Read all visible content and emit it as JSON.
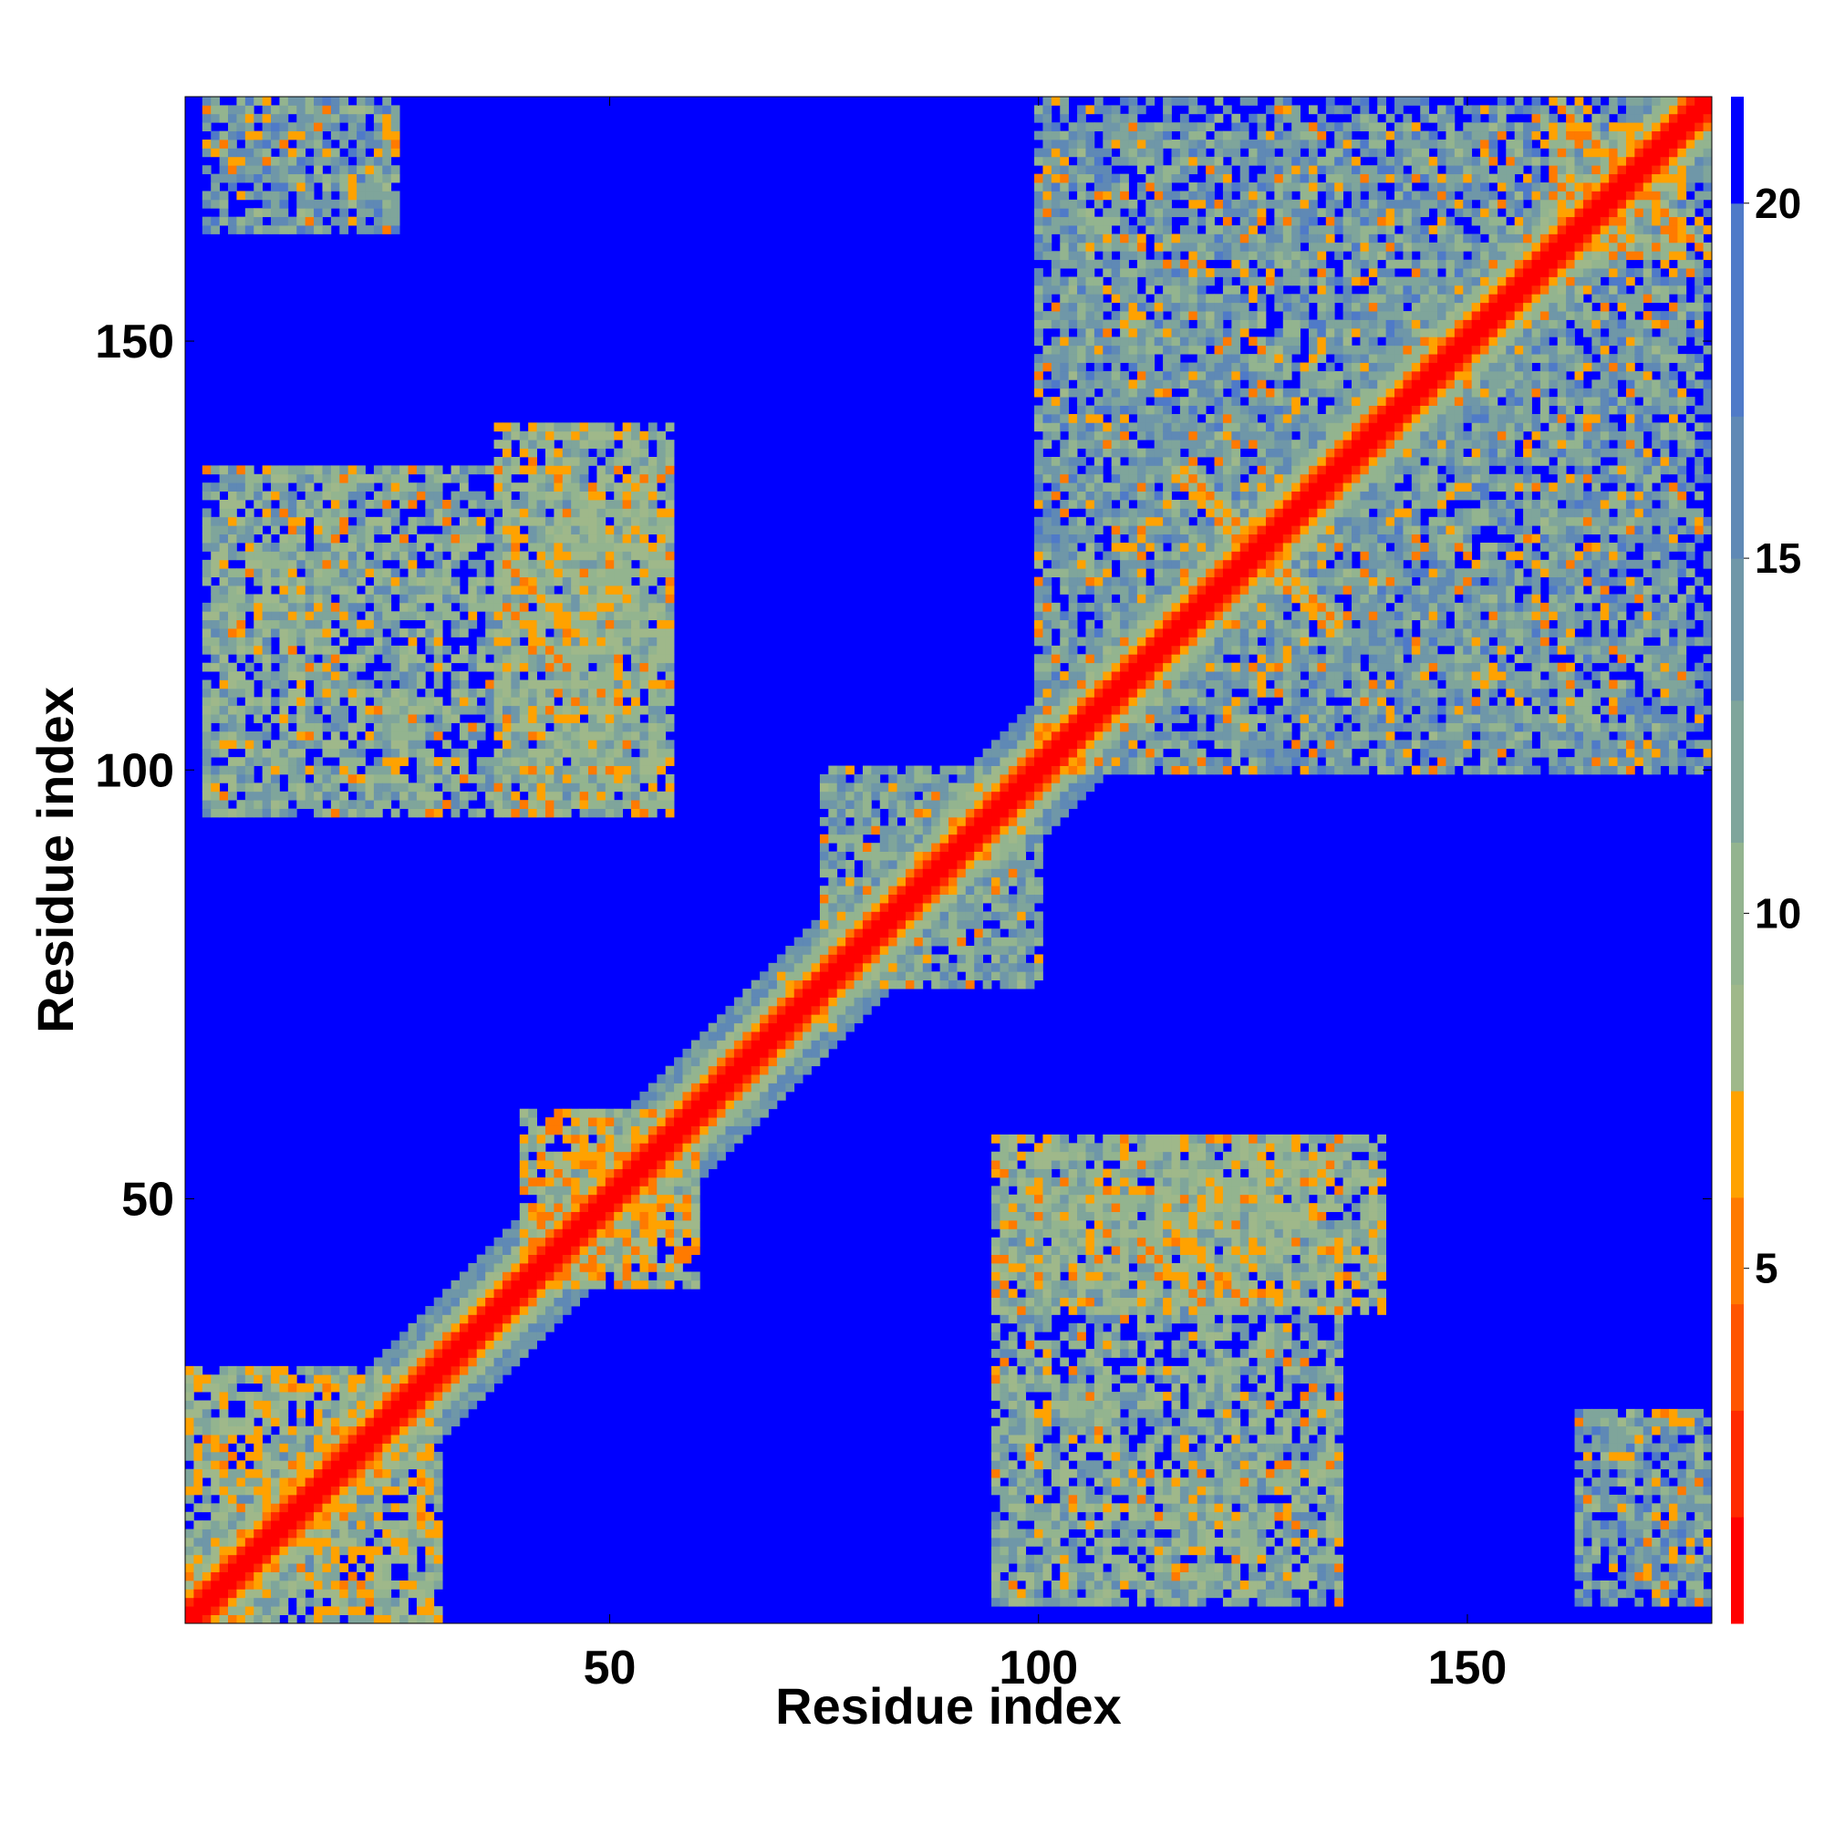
{
  "chart_data": {
    "type": "heatmap",
    "title": "",
    "xlabel": "Residue index",
    "ylabel": "Residue index",
    "xlim": [
      1,
      178
    ],
    "ylim": [
      1,
      178
    ],
    "xticks": [
      50,
      100,
      150
    ],
    "yticks": [
      50,
      100,
      150
    ],
    "colorbar": {
      "ticks": [
        5,
        10,
        15,
        20
      ],
      "range": [
        0,
        21.5
      ],
      "colors": [
        {
          "max": 1.5,
          "color": "#ff0000"
        },
        {
          "max": 3.0,
          "color": "#ff2a00"
        },
        {
          "max": 4.5,
          "color": "#ff5500"
        },
        {
          "max": 6.0,
          "color": "#ff7a00"
        },
        {
          "max": 7.5,
          "color": "#ffa200"
        },
        {
          "max": 9.0,
          "color": "#9fb88a"
        },
        {
          "max": 11.0,
          "color": "#93b48f"
        },
        {
          "max": 13.0,
          "color": "#7fa59b"
        },
        {
          "max": 15.0,
          "color": "#6f97a8"
        },
        {
          "max": 17.0,
          "color": "#5f89b5"
        },
        {
          "max": 20.0,
          "color": "#4f7ac8"
        },
        {
          "max": 999,
          "color": "#0000ff"
        }
      ]
    },
    "n_residues": 178,
    "matrix_description": "symmetric residue-residue distance map; near-diagonal distances small (red), long-range contact blocks around residues 1-30 x 1-30, 40-55 x 40-55 cross, 110-135 x 110-135 cross, 160-175 x 160-175, off-diagonal blocks at (10-55, 95-135) and (95-135, 25-55)",
    "contact_regions": [
      {
        "x": [
          3,
          30
        ],
        "y": [
          95,
          135
        ],
        "level": 12
      },
      {
        "x": [
          37,
          57
        ],
        "y": [
          95,
          140
        ],
        "level": 11
      },
      {
        "x": [
          95,
          135
        ],
        "y": [
          3,
          55
        ],
        "level": 12
      },
      {
        "x": [
          95,
          140
        ],
        "y": [
          37,
          57
        ],
        "level": 11
      },
      {
        "x": [
          100,
          175
        ],
        "y": [
          100,
          178
        ],
        "level": 14
      },
      {
        "x": [
          1,
          30
        ],
        "y": [
          1,
          30
        ],
        "level": 10
      },
      {
        "x": [
          40,
          60
        ],
        "y": [
          40,
          60
        ],
        "level": 9
      },
      {
        "x": [
          75,
          100
        ],
        "y": [
          75,
          100
        ],
        "level": 13
      },
      {
        "x": [
          160,
          175
        ],
        "y": [
          160,
          175
        ],
        "level": 9
      },
      {
        "x": [
          163,
          178
        ],
        "y": [
          3,
          25
        ],
        "level": 14
      },
      {
        "x": [
          3,
          25
        ],
        "y": [
          163,
          178
        ],
        "level": 14
      }
    ],
    "hot_spots": [
      {
        "x": 38,
        "y": 119,
        "len": 8,
        "dir": -1
      },
      {
        "x": 42,
        "y": 55,
        "len": 10,
        "dir": -1
      },
      {
        "x": 115,
        "y": 47,
        "len": 10,
        "dir": -1
      },
      {
        "x": 117,
        "y": 135,
        "len": 10,
        "dir": -1
      },
      {
        "x": 125,
        "y": 125,
        "len": 10,
        "dir": -1
      },
      {
        "x": 160,
        "y": 178,
        "len": 12,
        "dir": -1
      },
      {
        "x": 70,
        "y": 76,
        "len": 6,
        "dir": -1
      },
      {
        "x": 147,
        "y": 148,
        "len": 4,
        "dir": -1
      }
    ]
  }
}
